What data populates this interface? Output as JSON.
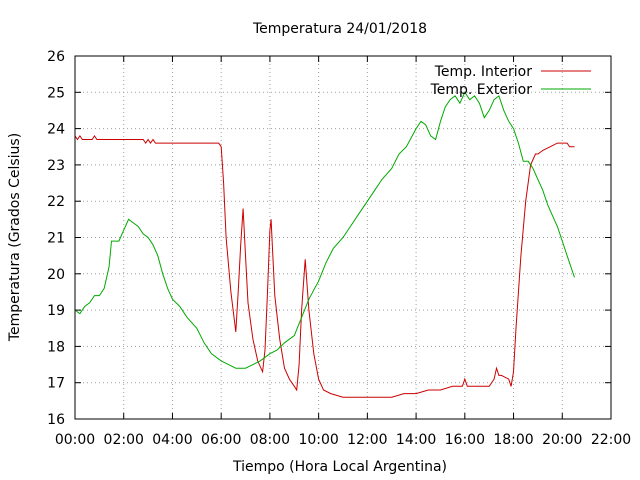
{
  "chart_data": {
    "type": "line",
    "title": "Temperatura 24/01/2018",
    "xlabel": "Tiempo (Hora Local Argentina)",
    "ylabel": "Temperatura (Grados Celsius)",
    "xlim": [
      0,
      22
    ],
    "ylim": [
      16,
      26
    ],
    "x_unit": "hours",
    "x_ticks": [
      {
        "value": 0,
        "label": "00:00"
      },
      {
        "value": 2,
        "label": "02:00"
      },
      {
        "value": 4,
        "label": "04:00"
      },
      {
        "value": 6,
        "label": "06:00"
      },
      {
        "value": 8,
        "label": "08:00"
      },
      {
        "value": 10,
        "label": "10:00"
      },
      {
        "value": 12,
        "label": "12:00"
      },
      {
        "value": 14,
        "label": "14:00"
      },
      {
        "value": 16,
        "label": "16:00"
      },
      {
        "value": 18,
        "label": "18:00"
      },
      {
        "value": 20,
        "label": "20:00"
      },
      {
        "value": 22,
        "label": "22:00"
      }
    ],
    "y_ticks": [
      {
        "value": 16,
        "label": "16"
      },
      {
        "value": 17,
        "label": "17"
      },
      {
        "value": 18,
        "label": "18"
      },
      {
        "value": 19,
        "label": "19"
      },
      {
        "value": 20,
        "label": "20"
      },
      {
        "value": 21,
        "label": "21"
      },
      {
        "value": 22,
        "label": "22"
      },
      {
        "value": 23,
        "label": "23"
      },
      {
        "value": 24,
        "label": "24"
      },
      {
        "value": 25,
        "label": "25"
      },
      {
        "value": 26,
        "label": "26"
      }
    ],
    "grid": true,
    "legend_position": "top-right",
    "series": [
      {
        "name": "Temp. Interior",
        "color": "#cc0000",
        "x": [
          0,
          0.1,
          0.2,
          0.3,
          0.5,
          0.7,
          0.8,
          0.9,
          1.0,
          1.5,
          2.0,
          2.5,
          2.8,
          2.9,
          3.0,
          3.1,
          3.2,
          3.3,
          3.4,
          3.5,
          4.0,
          5.0,
          5.9,
          6.0,
          6.1,
          6.2,
          6.4,
          6.6,
          6.7,
          6.8,
          6.9,
          7.0,
          7.1,
          7.3,
          7.5,
          7.7,
          7.8,
          7.9,
          8.0,
          8.05,
          8.1,
          8.2,
          8.4,
          8.6,
          8.8,
          9.0,
          9.1,
          9.2,
          9.3,
          9.45,
          9.6,
          9.8,
          10.0,
          10.2,
          10.5,
          11.0,
          12.0,
          13.0,
          13.5,
          14.0,
          14.5,
          15.0,
          15.5,
          15.9,
          16.0,
          16.1,
          16.3,
          16.8,
          17.0,
          17.2,
          17.3,
          17.4,
          17.5,
          17.8,
          17.9,
          18.0,
          18.1,
          18.3,
          18.5,
          18.7,
          18.9,
          19.0,
          19.2,
          19.5,
          19.8,
          20.0,
          20.2,
          20.3,
          20.5
        ],
        "values": [
          23.8,
          23.7,
          23.8,
          23.7,
          23.7,
          23.7,
          23.8,
          23.7,
          23.7,
          23.7,
          23.7,
          23.7,
          23.7,
          23.6,
          23.7,
          23.6,
          23.7,
          23.6,
          23.6,
          23.6,
          23.6,
          23.6,
          23.6,
          23.5,
          22.5,
          21.0,
          19.5,
          18.4,
          19.5,
          20.8,
          21.8,
          20.5,
          19.2,
          18.2,
          17.6,
          17.3,
          17.9,
          19.5,
          21.2,
          21.5,
          20.8,
          19.4,
          18.2,
          17.4,
          17.1,
          16.9,
          16.8,
          17.5,
          19.0,
          20.4,
          19.0,
          17.8,
          17.1,
          16.8,
          16.7,
          16.6,
          16.6,
          16.6,
          16.7,
          16.7,
          16.8,
          16.8,
          16.9,
          16.9,
          17.1,
          16.9,
          16.9,
          16.9,
          16.9,
          17.1,
          17.4,
          17.2,
          17.2,
          17.1,
          16.9,
          17.3,
          18.5,
          20.5,
          22.0,
          23.0,
          23.3,
          23.3,
          23.4,
          23.5,
          23.6,
          23.6,
          23.6,
          23.5,
          23.5
        ]
      },
      {
        "name": "Temp. Exterior",
        "color": "#00aa00",
        "x": [
          0,
          0.2,
          0.4,
          0.6,
          0.8,
          1.0,
          1.2,
          1.4,
          1.5,
          1.6,
          1.8,
          2.0,
          2.2,
          2.4,
          2.6,
          2.8,
          3.0,
          3.2,
          3.4,
          3.6,
          3.8,
          4.0,
          4.3,
          4.6,
          5.0,
          5.3,
          5.6,
          6.0,
          6.3,
          6.6,
          7.0,
          7.3,
          7.6,
          8.0,
          8.3,
          8.6,
          9.0,
          9.3,
          9.6,
          10.0,
          10.3,
          10.6,
          11.0,
          11.3,
          11.6,
          12.0,
          12.3,
          12.6,
          13.0,
          13.3,
          13.6,
          14.0,
          14.2,
          14.4,
          14.6,
          14.8,
          15.0,
          15.2,
          15.4,
          15.6,
          15.8,
          16.0,
          16.2,
          16.4,
          16.6,
          16.8,
          17.0,
          17.2,
          17.4,
          17.6,
          17.8,
          18.0,
          18.2,
          18.4,
          18.6,
          18.8,
          19.0,
          19.2,
          19.4,
          19.6,
          19.8,
          20.0,
          20.2,
          20.5
        ],
        "values": [
          19.0,
          18.9,
          19.1,
          19.2,
          19.4,
          19.4,
          19.6,
          20.2,
          20.9,
          20.9,
          20.9,
          21.2,
          21.5,
          21.4,
          21.3,
          21.1,
          21.0,
          20.8,
          20.5,
          20.0,
          19.6,
          19.3,
          19.1,
          18.8,
          18.5,
          18.1,
          17.8,
          17.6,
          17.5,
          17.4,
          17.4,
          17.5,
          17.6,
          17.8,
          17.9,
          18.1,
          18.3,
          18.8,
          19.3,
          19.8,
          20.3,
          20.7,
          21.0,
          21.3,
          21.6,
          22.0,
          22.3,
          22.6,
          22.9,
          23.3,
          23.5,
          24.0,
          24.2,
          24.1,
          23.8,
          23.7,
          24.2,
          24.6,
          24.8,
          24.9,
          24.7,
          25.0,
          24.8,
          24.9,
          24.7,
          24.3,
          24.5,
          24.8,
          24.9,
          24.5,
          24.2,
          24.0,
          23.6,
          23.1,
          23.1,
          22.9,
          22.6,
          22.3,
          21.9,
          21.6,
          21.3,
          20.9,
          20.5,
          19.9
        ]
      }
    ]
  }
}
